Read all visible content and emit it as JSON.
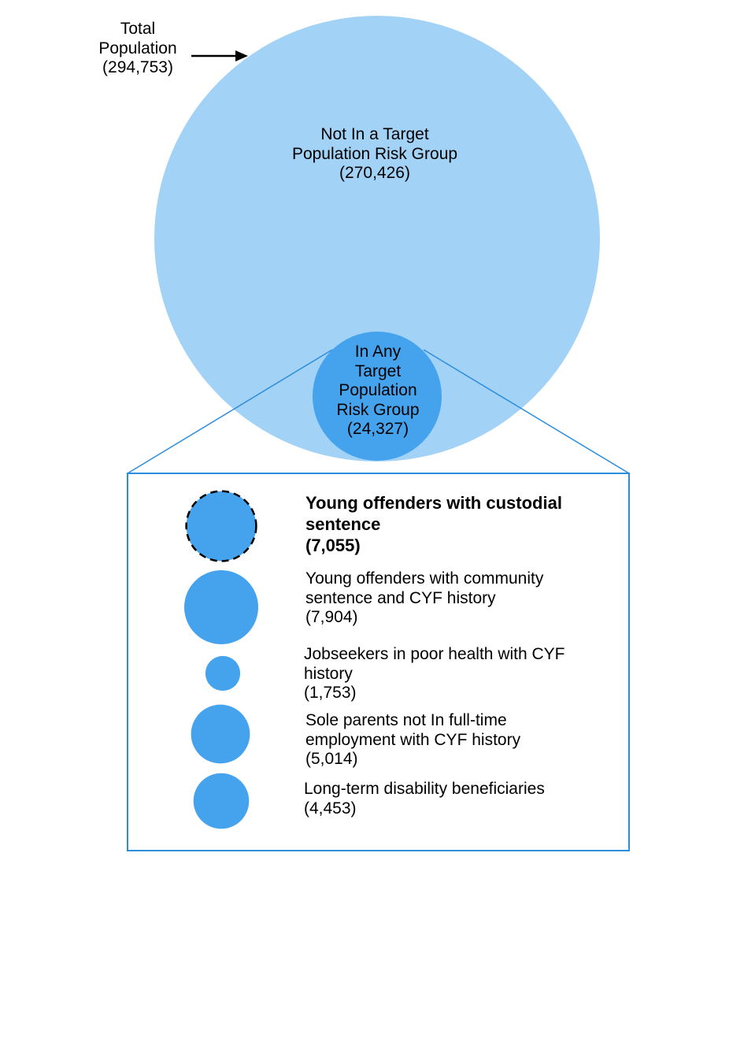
{
  "colors": {
    "outer_circle": "#a3d2f7",
    "inner_circle": "#45a3ed",
    "group_circle": "#45a3ed",
    "zoom_box": "#2b8ddd",
    "arrow": "#000000"
  },
  "total_population": {
    "lines": [
      "Total",
      "Population",
      "(294,753)"
    ],
    "value": 294753
  },
  "not_in_group": {
    "lines": [
      "Not In a Target",
      "Population Risk Group",
      "(270,426)"
    ],
    "value": 270426
  },
  "in_any_group": {
    "lines": [
      "In Any",
      "Target",
      "Population",
      "Risk Group",
      "(24,327)"
    ],
    "value": 24327
  },
  "groups": [
    {
      "lines": [
        "Young offenders with custodial",
        "sentence",
        "(7,055)"
      ],
      "value": 7055,
      "highlighted": true,
      "dashed_outline": true
    },
    {
      "lines": [
        "Young offenders with community",
        "sentence and CYF history",
        "(7,904)"
      ],
      "value": 7904,
      "highlighted": false,
      "dashed_outline": false
    },
    {
      "lines": [
        "Jobseekers in poor health with CYF",
        "history",
        "(1,753)"
      ],
      "value": 1753,
      "highlighted": false,
      "dashed_outline": false
    },
    {
      "lines": [
        "Sole parents not In full-time",
        "employment with CYF history",
        "(5,014)"
      ],
      "value": 5014,
      "highlighted": false,
      "dashed_outline": false
    },
    {
      "lines": [
        "Long-term disability beneficiaries",
        "(4,453)"
      ],
      "value": 4453,
      "highlighted": false,
      "dashed_outline": false
    }
  ]
}
